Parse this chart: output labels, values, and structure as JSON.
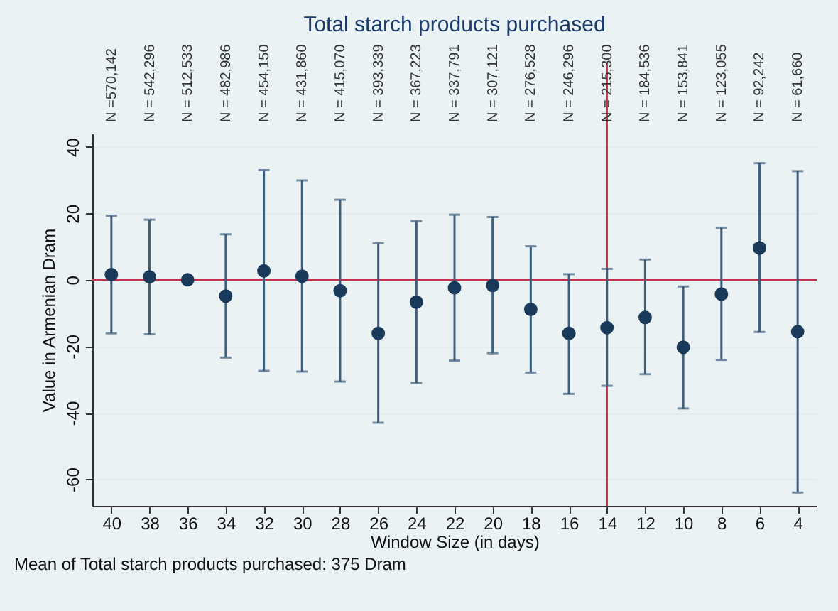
{
  "chart_data": {
    "type": "scatter",
    "title": "Total starch products purchased",
    "xlabel": "Window Size (in days)",
    "ylabel": "Value in Armenian Dram",
    "categories": [
      "40",
      "38",
      "36",
      "34",
      "32",
      "30",
      "28",
      "26",
      "24",
      "22",
      "20",
      "18",
      "16",
      "14",
      "12",
      "10",
      "8",
      "6",
      "4"
    ],
    "series": [
      {
        "color": "#1a3a5c",
        "values": [
          1.6,
          0.9,
          0,
          -4.9,
          2.7,
          1.1,
          -3.3,
          -16.1,
          -6.7,
          -2.4,
          -1.7,
          -8.9,
          -16.1,
          -14.4,
          -11.3,
          -20.3,
          -4.3,
          9.6,
          -15.6
        ],
        "errors": [
          [
            -16.1,
            19.3
          ],
          [
            -16.4,
            18.1
          ],
          null,
          [
            -23.4,
            13.7
          ],
          [
            -27.4,
            33
          ],
          [
            -27.6,
            29.9
          ],
          [
            -30.6,
            24.1
          ],
          [
            -43,
            11
          ],
          [
            -31,
            17.7
          ],
          [
            -24.3,
            19.6
          ],
          [
            -22.1,
            18.9
          ],
          [
            -27.9,
            10.1
          ],
          [
            -34.3,
            1.7
          ],
          [
            -31.9,
            3.3
          ],
          [
            -28.4,
            6.1
          ],
          [
            -38.7,
            -2
          ],
          [
            -24.1,
            15.7
          ],
          [
            -15.7,
            35.1
          ],
          [
            -64,
            32.7
          ]
        ]
      }
    ],
    "ylim": [
      -68,
      44
    ],
    "yticks": [
      -60,
      -40,
      -20,
      0,
      20,
      40
    ],
    "grid": "y",
    "marker": "circle",
    "ref_lines": [
      {
        "axis": "y",
        "value": 0,
        "color": "#c0304a"
      },
      {
        "axis": "x",
        "value": "14",
        "color": "#c0304a"
      }
    ],
    "annotations": [
      "N =570,142",
      "N = 542,296",
      "N = 512,533",
      "N = 482,986",
      "N = 454,150",
      "N = 431,860",
      "N = 415,070",
      "N = 393,339",
      "N = 367,223",
      "N = 337,791",
      "N = 307,121",
      "N = 276,528",
      "N = 246,296",
      "N = 215,300",
      "N = 184,536",
      "N = 153,841",
      "N = 123,055",
      "N = 92,242",
      "N = 61,660",
      "Mean of Total starch products purchased: 375 Dram"
    ]
  }
}
